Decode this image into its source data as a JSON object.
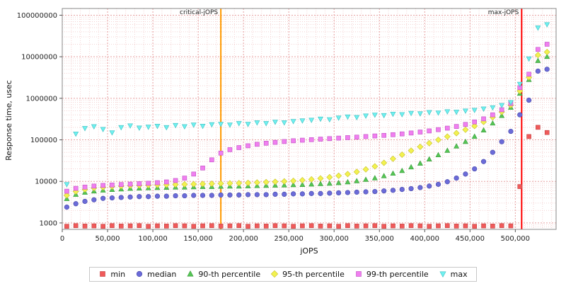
{
  "chart_data": {
    "type": "scatter",
    "title": "",
    "xlabel": "jOPS",
    "ylabel": "Response time, usec",
    "y_scale": "log",
    "grid": true,
    "legend_position": "bottom",
    "xlim": [
      0,
      545000
    ],
    "ylim": [
      700,
      145000000
    ],
    "x_ticks": [
      0,
      50000,
      100000,
      150000,
      200000,
      250000,
      300000,
      350000,
      400000,
      450000,
      500000
    ],
    "x_tick_labels": [
      "0",
      "50,000",
      "100,000",
      "150,000",
      "200,000",
      "250,000",
      "300,000",
      "350,000",
      "400,000",
      "450,000",
      "500,000"
    ],
    "y_ticks": [
      1000,
      10000,
      100000,
      1000000,
      10000000,
      100000000
    ],
    "y_tick_labels": [
      "1000",
      "10000",
      "100000",
      "1000000",
      "10000000",
      "100000000"
    ],
    "annotations": [
      {
        "label": "critical-jOPS",
        "x": 175000,
        "color": "#ff9900"
      },
      {
        "label": "max-jOPS",
        "x": 507000,
        "color": "#ff0000"
      }
    ],
    "x": [
      5000,
      15000,
      25000,
      35000,
      45000,
      55000,
      65000,
      75000,
      85000,
      95000,
      105000,
      115000,
      125000,
      135000,
      145000,
      155000,
      165000,
      175000,
      185000,
      195000,
      205000,
      215000,
      225000,
      235000,
      245000,
      255000,
      265000,
      275000,
      285000,
      295000,
      305000,
      315000,
      325000,
      335000,
      345000,
      355000,
      365000,
      375000,
      385000,
      395000,
      405000,
      415000,
      425000,
      435000,
      445000,
      455000,
      465000,
      475000,
      485000,
      495000,
      505000,
      515000,
      525000,
      535000
    ],
    "series": [
      {
        "name": "min",
        "marker": "square",
        "color": "#f05a5a",
        "stroke": "#c04040",
        "values": [
          830,
          860,
          840,
          850,
          830,
          860,
          840,
          850,
          860,
          830,
          850,
          840,
          860,
          850,
          830,
          850,
          860,
          840,
          850,
          860,
          830,
          850,
          840,
          860,
          850,
          830,
          850,
          860,
          840,
          850,
          830,
          860,
          840,
          850,
          860,
          830,
          850,
          840,
          860,
          850,
          830,
          850,
          860,
          840,
          850,
          830,
          850,
          840,
          860,
          850,
          7500,
          120000,
          200000,
          150000
        ]
      },
      {
        "name": "median",
        "marker": "circle",
        "color": "#6b6bd8",
        "stroke": "#4848a8",
        "values": [
          2400,
          2900,
          3300,
          3600,
          3900,
          4000,
          4100,
          4200,
          4300,
          4300,
          4400,
          4400,
          4500,
          4500,
          4600,
          4600,
          4600,
          4700,
          4700,
          4700,
          4800,
          4800,
          4800,
          4900,
          4900,
          5000,
          5000,
          5100,
          5100,
          5200,
          5300,
          5400,
          5500,
          5600,
          5700,
          5900,
          6100,
          6400,
          6700,
          7100,
          7700,
          8500,
          9800,
          12000,
          15000,
          20000,
          30000,
          50000,
          90000,
          160000,
          400000,
          900000,
          4500000,
          5000000
        ]
      },
      {
        "name": "90-th percentile",
        "marker": "triangle-up",
        "color": "#55c555",
        "stroke": "#3a9a3a",
        "values": [
          3800,
          4800,
          5400,
          5800,
          6100,
          6300,
          6500,
          6700,
          6800,
          6900,
          7000,
          7100,
          7200,
          7200,
          7300,
          7400,
          7400,
          7500,
          7600,
          7600,
          7700,
          7800,
          7900,
          8000,
          8100,
          8200,
          8300,
          8500,
          8700,
          8900,
          9200,
          9600,
          10200,
          11000,
          12000,
          13500,
          15500,
          18000,
          22000,
          27000,
          34000,
          43000,
          55000,
          70000,
          90000,
          120000,
          170000,
          250000,
          380000,
          600000,
          1300000,
          2800000,
          8000000,
          10000000
        ]
      },
      {
        "name": "95-th percentile",
        "marker": "diamond",
        "color": "#f2f24f",
        "stroke": "#c8c030",
        "values": [
          4600,
          5700,
          6400,
          6900,
          7200,
          7500,
          7700,
          7900,
          8000,
          8100,
          8200,
          8300,
          8400,
          8500,
          8600,
          8700,
          8800,
          8900,
          9000,
          9100,
          9200,
          9400,
          9600,
          9800,
          10000,
          10300,
          10700,
          11200,
          11800,
          12600,
          13700,
          15000,
          17000,
          19500,
          23000,
          28000,
          35000,
          44000,
          55000,
          68000,
          83000,
          100000,
          120000,
          145000,
          175000,
          215000,
          270000,
          350000,
          470000,
          680000,
          1500000,
          3200000,
          11000000,
          13000000
        ]
      },
      {
        "name": "99-th percentile",
        "marker": "square",
        "color": "#f07ff0",
        "stroke": "#c050c0",
        "values": [
          5800,
          6800,
          7300,
          7700,
          8000,
          8200,
          8400,
          8600,
          8800,
          9000,
          9300,
          9700,
          10500,
          12000,
          15000,
          21000,
          33000,
          48000,
          58000,
          65000,
          72000,
          78000,
          83000,
          87000,
          91000,
          95000,
          98000,
          101000,
          104000,
          107000,
          110000,
          113000,
          116000,
          120000,
          124000,
          128000,
          133000,
          139000,
          146000,
          154000,
          164000,
          176000,
          191000,
          210000,
          235000,
          270000,
          320000,
          400000,
          530000,
          750000,
          1800000,
          3800000,
          15000000,
          20000000
        ]
      },
      {
        "name": "max",
        "marker": "triangle-down",
        "color": "#70f0f0",
        "stroke": "#40c0c0",
        "values": [
          8500,
          140000,
          190000,
          210000,
          180000,
          150000,
          200000,
          220000,
          195000,
          205000,
          215000,
          200000,
          225000,
          210000,
          230000,
          215000,
          235000,
          240000,
          230000,
          250000,
          240000,
          260000,
          250000,
          270000,
          260000,
          280000,
          290000,
          300000,
          320000,
          310000,
          340000,
          360000,
          350000,
          380000,
          400000,
          390000,
          420000,
          410000,
          440000,
          430000,
          460000,
          450000,
          480000,
          470000,
          500000,
          520000,
          560000,
          600000,
          680000,
          800000,
          2200000,
          9000000,
          50000000,
          60000000
        ]
      }
    ],
    "grid_colors": {
      "major": "#e6a0a0",
      "minor": "#f4d2d2",
      "border": "#888888"
    }
  }
}
